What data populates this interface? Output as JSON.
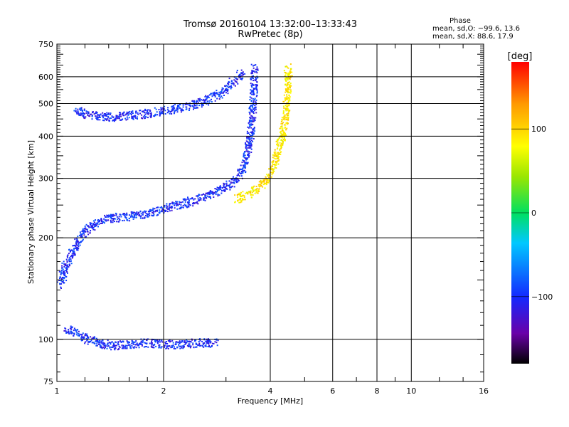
{
  "chart_data": {
    "type": "scatter",
    "title": "Tromsø 20160104 13:32:00–13:33:43",
    "subtitle": "RwPretec (8p)",
    "xlabel": "Frequency [MHz]",
    "ylabel": "Stationary phase Virtual Height [km]",
    "x_scale": "log",
    "y_scale": "log",
    "xlim": [
      1,
      16
    ],
    "ylim": [
      75,
      750
    ],
    "x_ticks": [
      1,
      2,
      4,
      6,
      8,
      10,
      16
    ],
    "x_tick_labels": [
      "1",
      "2",
      "4",
      "6",
      "8",
      "10",
      "16"
    ],
    "x_grid": [
      1,
      2,
      4,
      6,
      8,
      10
    ],
    "y_ticks": [
      75,
      100,
      200,
      300,
      400,
      500,
      600,
      750
    ],
    "y_tick_labels": [
      "75",
      "100",
      "200",
      "300",
      "400",
      "500",
      "600",
      "750"
    ],
    "y_grid": [
      100,
      200,
      300,
      400,
      500,
      600
    ],
    "phase_info": {
      "heading": "Phase",
      "line_o": "mean, sd,O: −99.6, 13.6",
      "line_x": "mean, sd,X:  88.6, 17.9"
    },
    "colorbar": {
      "label": "[deg]",
      "range": [
        -180,
        180
      ],
      "ticks": [
        100,
        0,
        -100
      ],
      "tick_labels": [
        "100",
        "0",
        "−100"
      ]
    },
    "o_mode_phase_deg": -99.6,
    "x_mode_phase_deg": 88.6,
    "traces": [
      {
        "mode": "O",
        "phase": -100,
        "points": [
          [
            1.05,
            108
          ],
          [
            1.1,
            106
          ],
          [
            1.15,
            104
          ],
          [
            1.2,
            101
          ],
          [
            1.3,
            98
          ],
          [
            1.45,
            96
          ],
          [
            1.6,
            97
          ],
          [
            1.75,
            98
          ],
          [
            2.0,
            97
          ],
          [
            2.2,
            97
          ],
          [
            2.5,
            98
          ],
          [
            2.8,
            98
          ]
        ]
      },
      {
        "mode": "O",
        "phase": -100,
        "points": [
          [
            1.02,
            145
          ],
          [
            1.05,
            165
          ],
          [
            1.1,
            182
          ],
          [
            1.15,
            200
          ],
          [
            1.22,
            215
          ],
          [
            1.35,
            228
          ],
          [
            1.55,
            232
          ],
          [
            1.8,
            237
          ],
          [
            2.1,
            248
          ],
          [
            2.4,
            258
          ],
          [
            2.7,
            270
          ],
          [
            3.0,
            285
          ],
          [
            3.25,
            305
          ],
          [
            3.4,
            340
          ],
          [
            3.5,
            400
          ],
          [
            3.55,
            470
          ],
          [
            3.58,
            560
          ],
          [
            3.6,
            640
          ]
        ]
      },
      {
        "mode": "O",
        "phase": -100,
        "points": [
          [
            1.12,
            478
          ],
          [
            1.25,
            462
          ],
          [
            1.45,
            458
          ],
          [
            1.7,
            465
          ],
          [
            2.0,
            478
          ],
          [
            2.3,
            492
          ],
          [
            2.6,
            510
          ],
          [
            2.9,
            540
          ],
          [
            3.1,
            575
          ],
          [
            3.3,
            615
          ]
        ]
      },
      {
        "mode": "X",
        "phase": 90,
        "points": [
          [
            3.2,
            262
          ],
          [
            3.5,
            272
          ],
          [
            3.8,
            290
          ],
          [
            4.0,
            310
          ],
          [
            4.15,
            350
          ],
          [
            4.3,
            400
          ],
          [
            4.4,
            460
          ],
          [
            4.45,
            530
          ],
          [
            4.5,
            600
          ],
          [
            4.45,
            650
          ]
        ]
      }
    ]
  }
}
